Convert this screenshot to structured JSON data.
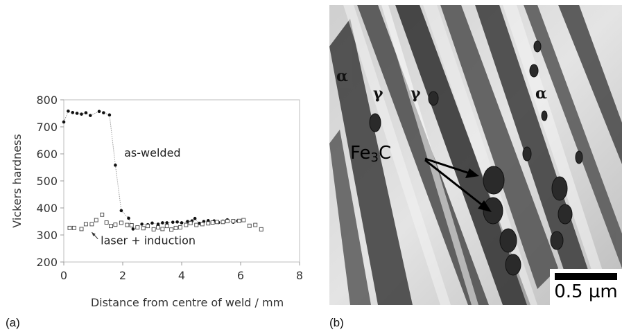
{
  "panel_a_label": "(a)",
  "panel_b_label": "(b)",
  "chart_data": {
    "type": "scatter",
    "xlabel": "Distance from centre of weld / mm",
    "ylabel": "Vickers hardness",
    "xlim": [
      0,
      8
    ],
    "ylim": [
      200,
      800
    ],
    "x_ticks": [
      "0",
      "2",
      "4",
      "6",
      "8"
    ],
    "y_ticks": [
      "200",
      "300",
      "400",
      "500",
      "600",
      "700",
      "800"
    ],
    "grid": false,
    "series": [
      {
        "name": "as-welded",
        "marker": "filled-circle",
        "connected": true,
        "points": [
          [
            0.0,
            718
          ],
          [
            0.15,
            758
          ],
          [
            0.3,
            753
          ],
          [
            0.45,
            750
          ],
          [
            0.6,
            747
          ],
          [
            0.75,
            752
          ],
          [
            0.9,
            742
          ],
          [
            1.2,
            757
          ],
          [
            1.35,
            752
          ],
          [
            1.55,
            744
          ],
          [
            1.75,
            558
          ],
          [
            1.95,
            390
          ],
          [
            2.2,
            362
          ],
          [
            2.35,
            322
          ],
          [
            2.5,
            327
          ],
          [
            2.65,
            340
          ],
          [
            2.85,
            338
          ],
          [
            3.0,
            344
          ],
          [
            3.2,
            340
          ],
          [
            3.35,
            345
          ],
          [
            3.5,
            345
          ],
          [
            3.7,
            347
          ],
          [
            3.85,
            348
          ],
          [
            4.0,
            345
          ],
          [
            4.2,
            350
          ],
          [
            4.35,
            352
          ],
          [
            4.45,
            361
          ],
          [
            4.6,
            343
          ],
          [
            4.75,
            350
          ],
          [
            4.9,
            353
          ],
          [
            5.1,
            352
          ],
          [
            5.25,
            346
          ],
          [
            5.4,
            351
          ],
          [
            5.55,
            356
          ],
          [
            5.75,
            347
          ],
          [
            5.9,
            352
          ]
        ]
      },
      {
        "name": "laser + induction",
        "marker": "open-square",
        "connected": false,
        "points": [
          [
            0.2,
            326
          ],
          [
            0.35,
            326
          ],
          [
            0.6,
            322
          ],
          [
            0.75,
            340
          ],
          [
            0.95,
            340
          ],
          [
            1.1,
            355
          ],
          [
            1.3,
            375
          ],
          [
            1.45,
            346
          ],
          [
            1.6,
            333
          ],
          [
            1.75,
            338
          ],
          [
            1.95,
            345
          ],
          [
            2.15,
            337
          ],
          [
            2.3,
            336
          ],
          [
            2.5,
            328
          ],
          [
            2.7,
            325
          ],
          [
            2.85,
            333
          ],
          [
            3.05,
            321
          ],
          [
            3.2,
            328
          ],
          [
            3.35,
            322
          ],
          [
            3.5,
            333
          ],
          [
            3.65,
            320
          ],
          [
            3.8,
            326
          ],
          [
            3.95,
            328
          ],
          [
            4.15,
            337
          ],
          [
            4.3,
            344
          ],
          [
            4.5,
            337
          ],
          [
            4.7,
            340
          ],
          [
            4.9,
            343
          ],
          [
            5.05,
            346
          ],
          [
            5.2,
            348
          ],
          [
            5.4,
            348
          ],
          [
            5.55,
            351
          ],
          [
            5.75,
            351
          ],
          [
            5.95,
            352
          ],
          [
            6.1,
            355
          ],
          [
            6.3,
            334
          ],
          [
            6.5,
            337
          ],
          [
            6.7,
            321
          ]
        ]
      }
    ],
    "annotations": [
      {
        "text": "as-welded",
        "at": [
          2.05,
          590
        ]
      },
      {
        "text": "laser + induction",
        "at": [
          1.25,
          265
        ],
        "arrow_to": [
          0.95,
          310
        ]
      }
    ]
  },
  "micrograph": {
    "labels": {
      "alpha": "α",
      "gamma": "γ",
      "fe": "Fe",
      "fe_sub": "3",
      "c": "C"
    },
    "scale_bar": "0.5 µm"
  }
}
